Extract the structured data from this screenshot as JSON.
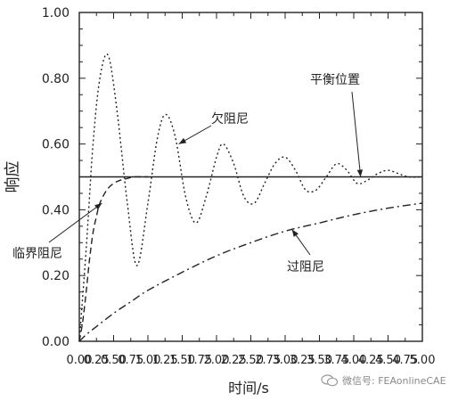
{
  "chart_data": {
    "type": "line",
    "xlabel": "时间/s",
    "ylabel": "响应",
    "xlim": [
      0,
      5
    ],
    "ylim": [
      0,
      1
    ],
    "x_ticks": [
      "0.00",
      "0.25",
      "0.50",
      "0.75",
      "1.00",
      "1.25",
      "1.50",
      "1.75",
      "2.00",
      "2.25",
      "2.50",
      "2.75",
      "3.00",
      "3.25",
      "3.50",
      "3.75",
      "4.00",
      "4.25",
      "4.50",
      "4.75",
      "5.00"
    ],
    "y_ticks": [
      "0.00",
      "0.20",
      "0.40",
      "0.60",
      "0.80",
      "1.00"
    ],
    "grid": false,
    "series": [
      {
        "name": "平衡位置",
        "style": "solid",
        "x": [
          0,
          5
        ],
        "y": [
          0.5,
          0.5
        ]
      },
      {
        "name": "欠阻尼",
        "style": "dotted",
        "x": [
          0,
          0.1,
          0.2,
          0.3,
          0.42,
          0.55,
          0.7,
          0.84,
          1.0,
          1.14,
          1.26,
          1.4,
          1.55,
          1.7,
          1.85,
          2.0,
          2.1,
          2.25,
          2.4,
          2.55,
          2.7,
          2.85,
          3.0,
          3.15,
          3.3,
          3.45,
          3.6,
          3.75,
          3.9,
          4.05,
          4.2,
          4.35,
          4.5,
          4.65,
          4.8,
          5.0
        ],
        "y": [
          0.0,
          0.28,
          0.6,
          0.8,
          0.87,
          0.7,
          0.42,
          0.23,
          0.42,
          0.62,
          0.69,
          0.62,
          0.44,
          0.36,
          0.44,
          0.56,
          0.6,
          0.54,
          0.44,
          0.42,
          0.48,
          0.54,
          0.56,
          0.52,
          0.46,
          0.46,
          0.5,
          0.54,
          0.52,
          0.48,
          0.49,
          0.51,
          0.52,
          0.51,
          0.5,
          0.5
        ]
      },
      {
        "name": "临界阻尼",
        "style": "dashed",
        "x": [
          0,
          0.05,
          0.1,
          0.15,
          0.2,
          0.25,
          0.3,
          0.4,
          0.5,
          0.6,
          0.7,
          0.8,
          1.0
        ],
        "y": [
          0.0,
          0.06,
          0.15,
          0.25,
          0.33,
          0.38,
          0.42,
          0.46,
          0.48,
          0.49,
          0.495,
          0.5,
          0.5
        ]
      },
      {
        "name": "过阻尼",
        "style": "dashdot",
        "x": [
          0,
          0.1,
          0.25,
          0.5,
          0.75,
          1.0,
          1.5,
          2.0,
          2.5,
          3.0,
          3.5,
          4.0,
          4.5,
          5.0
        ],
        "y": [
          0.0,
          0.02,
          0.045,
          0.085,
          0.12,
          0.155,
          0.21,
          0.26,
          0.3,
          0.335,
          0.36,
          0.385,
          0.405,
          0.42
        ]
      }
    ],
    "annotations": [
      {
        "text": "平衡位置",
        "target_x": 4.1,
        "target_y": 0.5
      },
      {
        "text": "欠阻尼",
        "target_x": 1.45,
        "target_y": 0.6
      },
      {
        "text": "临界阻尼",
        "target_x": 0.33,
        "target_y": 0.42
      },
      {
        "text": "过阻尼",
        "target_x": 3.1,
        "target_y": 0.34
      }
    ]
  },
  "watermark": "微信号: FEAonlineCAE"
}
